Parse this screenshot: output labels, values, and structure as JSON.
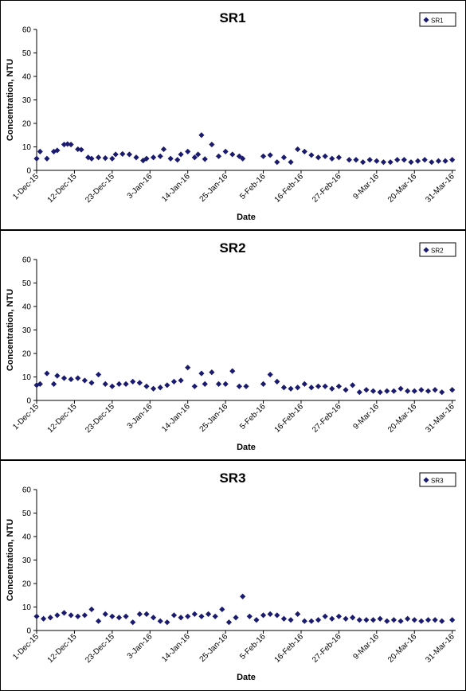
{
  "chart_data": [
    {
      "type": "scatter",
      "title": "SR1",
      "xlabel": "Date",
      "ylabel": "Concentration, NTU",
      "ylim": [
        0,
        60
      ],
      "yticks": [
        "0",
        "10",
        "20",
        "30",
        "40",
        "50",
        "60"
      ],
      "xlim": [
        "2015-12-01",
        "2016-04-01"
      ],
      "xticks": [
        {
          "date": "2015-12-01",
          "label": "1-Dec-15"
        },
        {
          "date": "2015-12-12",
          "label": "12-Dec-15"
        },
        {
          "date": "2015-12-23",
          "label": "23-Dec-15"
        },
        {
          "date": "2016-01-03",
          "label": "3-Jan-16"
        },
        {
          "date": "2016-01-14",
          "label": "14-Jan-16"
        },
        {
          "date": "2016-01-25",
          "label": "25-Jan-16"
        },
        {
          "date": "2016-02-05",
          "label": "5-Feb-16"
        },
        {
          "date": "2016-02-16",
          "label": "16-Feb-16"
        },
        {
          "date": "2016-02-27",
          "label": "27-Feb-16"
        },
        {
          "date": "2016-03-09",
          "label": "9-Mar-16"
        },
        {
          "date": "2016-03-20",
          "label": "20-Mar-16"
        },
        {
          "date": "2016-03-31",
          "label": "31-Mar-16"
        }
      ],
      "legend": "top-right",
      "color": "#1a1a6e",
      "series": [
        {
          "name": "SR1",
          "x": [
            "2015-12-01",
            "2015-12-02",
            "2015-12-04",
            "2015-12-06",
            "2015-12-07",
            "2015-12-09",
            "2015-12-10",
            "2015-12-11",
            "2015-12-13",
            "2015-12-14",
            "2015-12-16",
            "2015-12-17",
            "2015-12-19",
            "2015-12-21",
            "2015-12-23",
            "2015-12-24",
            "2015-12-26",
            "2015-12-28",
            "2015-12-30",
            "2016-01-01",
            "2016-01-02",
            "2016-01-04",
            "2016-01-06",
            "2016-01-07",
            "2016-01-09",
            "2016-01-11",
            "2016-01-12",
            "2016-01-14",
            "2016-01-16",
            "2016-01-17",
            "2016-01-18",
            "2016-01-19",
            "2016-01-21",
            "2016-01-23",
            "2016-01-25",
            "2016-01-27",
            "2016-01-29",
            "2016-01-30",
            "2016-02-05",
            "2016-02-07",
            "2016-02-09",
            "2016-02-11",
            "2016-02-13",
            "2016-02-15",
            "2016-02-17",
            "2016-02-19",
            "2016-02-21",
            "2016-02-23",
            "2016-02-25",
            "2016-02-27",
            "2016-03-01",
            "2016-03-03",
            "2016-03-05",
            "2016-03-07",
            "2016-03-09",
            "2016-03-11",
            "2016-03-13",
            "2016-03-15",
            "2016-03-17",
            "2016-03-19",
            "2016-03-21",
            "2016-03-23",
            "2016-03-25",
            "2016-03-27",
            "2016-03-29",
            "2016-03-31"
          ],
          "y": [
            5.0,
            8.0,
            5.0,
            8.0,
            8.5,
            11.0,
            11.2,
            11.0,
            9.0,
            8.8,
            5.5,
            5.0,
            5.5,
            5.2,
            5.0,
            6.8,
            7.0,
            6.8,
            5.5,
            4.2,
            5.0,
            5.5,
            6.0,
            9.0,
            5.0,
            4.5,
            6.8,
            8.0,
            5.5,
            6.8,
            15.0,
            4.8,
            11.0,
            6.0,
            8.0,
            6.8,
            6.0,
            5.0,
            6.0,
            6.5,
            3.5,
            5.5,
            3.5,
            9.0,
            8.0,
            6.5,
            5.5,
            6.0,
            5.0,
            5.5,
            4.5,
            4.5,
            3.5,
            4.5,
            4.0,
            3.5,
            3.5,
            4.5,
            4.5,
            3.5,
            4.0,
            4.5,
            3.5,
            4.0,
            4.0,
            4.5
          ]
        }
      ]
    },
    {
      "type": "scatter",
      "title": "SR2",
      "xlabel": "Date",
      "ylabel": "Concentration, NTU",
      "ylim": [
        0,
        60
      ],
      "yticks": [
        "0",
        "10",
        "20",
        "30",
        "40",
        "50",
        "60"
      ],
      "xlim": [
        "2015-12-01",
        "2016-04-01"
      ],
      "xticks": [
        {
          "date": "2015-12-01",
          "label": "1-Dec-15"
        },
        {
          "date": "2015-12-12",
          "label": "12-Dec-15"
        },
        {
          "date": "2015-12-23",
          "label": "23-Dec-15"
        },
        {
          "date": "2016-01-03",
          "label": "3-Jan-16"
        },
        {
          "date": "2016-01-14",
          "label": "14-Jan-16"
        },
        {
          "date": "2016-01-25",
          "label": "25-Jan-16"
        },
        {
          "date": "2016-02-05",
          "label": "5-Feb-16"
        },
        {
          "date": "2016-02-16",
          "label": "16-Feb-16"
        },
        {
          "date": "2016-02-27",
          "label": "27-Feb-16"
        },
        {
          "date": "2016-03-09",
          "label": "9-Mar-16"
        },
        {
          "date": "2016-03-20",
          "label": "20-Mar-16"
        },
        {
          "date": "2016-03-31",
          "label": "31-Mar-16"
        }
      ],
      "legend": "top-right",
      "color": "#1a1a6e",
      "series": [
        {
          "name": "SR2",
          "x": [
            "2015-12-01",
            "2015-12-02",
            "2015-12-04",
            "2015-12-06",
            "2015-12-07",
            "2015-12-09",
            "2015-12-11",
            "2015-12-13",
            "2015-12-15",
            "2015-12-17",
            "2015-12-19",
            "2015-12-21",
            "2015-12-23",
            "2015-12-25",
            "2015-12-27",
            "2015-12-29",
            "2015-12-31",
            "2016-01-02",
            "2016-01-04",
            "2016-01-06",
            "2016-01-08",
            "2016-01-10",
            "2016-01-12",
            "2016-01-14",
            "2016-01-16",
            "2016-01-18",
            "2016-01-19",
            "2016-01-21",
            "2016-01-23",
            "2016-01-25",
            "2016-01-27",
            "2016-01-29",
            "2016-01-31",
            "2016-02-05",
            "2016-02-07",
            "2016-02-09",
            "2016-02-11",
            "2016-02-13",
            "2016-02-15",
            "2016-02-17",
            "2016-02-19",
            "2016-02-21",
            "2016-02-23",
            "2016-02-25",
            "2016-02-27",
            "2016-02-29",
            "2016-03-02",
            "2016-03-04",
            "2016-03-06",
            "2016-03-08",
            "2016-03-10",
            "2016-03-12",
            "2016-03-14",
            "2016-03-16",
            "2016-03-18",
            "2016-03-20",
            "2016-03-22",
            "2016-03-24",
            "2016-03-26",
            "2016-03-28",
            "2016-03-31"
          ],
          "y": [
            6.5,
            7.0,
            11.5,
            7.0,
            10.5,
            9.5,
            9.0,
            9.5,
            8.5,
            7.5,
            11.0,
            7.0,
            6.0,
            7.0,
            7.0,
            8.0,
            7.5,
            6.0,
            5.0,
            5.5,
            6.5,
            8.0,
            8.5,
            14.0,
            6.0,
            11.5,
            7.0,
            12.0,
            7.0,
            7.0,
            12.5,
            6.0,
            6.0,
            7.0,
            11.0,
            8.0,
            5.5,
            5.0,
            5.5,
            7.0,
            5.5,
            6.0,
            6.0,
            5.0,
            6.0,
            4.5,
            6.5,
            3.5,
            4.5,
            4.0,
            3.5,
            4.0,
            4.0,
            5.0,
            4.0,
            4.0,
            4.5,
            4.0,
            4.5,
            3.5,
            4.5
          ]
        }
      ]
    },
    {
      "type": "scatter",
      "title": "SR3",
      "xlabel": "Date",
      "ylabel": "Concentration, NTU",
      "ylim": [
        0,
        60
      ],
      "yticks": [
        "0",
        "10",
        "20",
        "30",
        "40",
        "50",
        "60"
      ],
      "xlim": [
        "2015-12-01",
        "2016-04-01"
      ],
      "xticks": [
        {
          "date": "2015-12-01",
          "label": "1-Dec-15"
        },
        {
          "date": "2015-12-12",
          "label": "12-Dec-15"
        },
        {
          "date": "2015-12-23",
          "label": "23-Dec-15"
        },
        {
          "date": "2016-01-03",
          "label": "3-Jan-16"
        },
        {
          "date": "2016-01-14",
          "label": "14-Jan-16"
        },
        {
          "date": "2016-01-25",
          "label": "25-Jan-16"
        },
        {
          "date": "2016-02-05",
          "label": "5-Feb-16"
        },
        {
          "date": "2016-02-16",
          "label": "16-Feb-16"
        },
        {
          "date": "2016-02-27",
          "label": "27-Feb-16"
        },
        {
          "date": "2016-03-09",
          "label": "9-Mar-16"
        },
        {
          "date": "2016-03-20",
          "label": "20-Mar-16"
        },
        {
          "date": "2016-03-31",
          "label": "31-Mar-16"
        }
      ],
      "legend": "top-right",
      "color": "#1a1a6e",
      "series": [
        {
          "name": "SR3",
          "x": [
            "2015-12-01",
            "2015-12-03",
            "2015-12-05",
            "2015-12-07",
            "2015-12-09",
            "2015-12-11",
            "2015-12-13",
            "2015-12-15",
            "2015-12-17",
            "2015-12-19",
            "2015-12-21",
            "2015-12-23",
            "2015-12-25",
            "2015-12-27",
            "2015-12-29",
            "2015-12-31",
            "2016-01-02",
            "2016-01-04",
            "2016-01-06",
            "2016-01-08",
            "2016-01-10",
            "2016-01-12",
            "2016-01-14",
            "2016-01-16",
            "2016-01-18",
            "2016-01-20",
            "2016-01-22",
            "2016-01-24",
            "2016-01-26",
            "2016-01-28",
            "2016-01-30",
            "2016-02-01",
            "2016-02-03",
            "2016-02-05",
            "2016-02-07",
            "2016-02-09",
            "2016-02-11",
            "2016-02-13",
            "2016-02-15",
            "2016-02-17",
            "2016-02-19",
            "2016-02-21",
            "2016-02-23",
            "2016-02-25",
            "2016-02-27",
            "2016-02-29",
            "2016-03-02",
            "2016-03-04",
            "2016-03-06",
            "2016-03-08",
            "2016-03-10",
            "2016-03-12",
            "2016-03-14",
            "2016-03-16",
            "2016-03-18",
            "2016-03-20",
            "2016-03-22",
            "2016-03-24",
            "2016-03-26",
            "2016-03-28",
            "2016-03-31"
          ],
          "y": [
            6.0,
            5.0,
            5.5,
            6.5,
            7.5,
            6.5,
            6.0,
            6.5,
            9.0,
            4.0,
            7.0,
            6.0,
            5.5,
            6.0,
            3.5,
            7.0,
            7.0,
            5.5,
            4.0,
            3.5,
            6.5,
            5.5,
            6.0,
            7.0,
            6.0,
            7.0,
            6.0,
            9.0,
            3.5,
            5.5,
            14.5,
            6.0,
            4.5,
            6.5,
            7.0,
            6.5,
            5.0,
            4.5,
            7.0,
            4.0,
            4.0,
            4.5,
            6.0,
            5.0,
            6.0,
            5.0,
            5.5,
            4.5,
            4.5,
            4.5,
            5.0,
            4.0,
            4.5,
            4.0,
            5.0,
            4.5,
            4.0,
            4.5,
            4.5,
            4.0,
            4.5
          ]
        }
      ]
    }
  ]
}
